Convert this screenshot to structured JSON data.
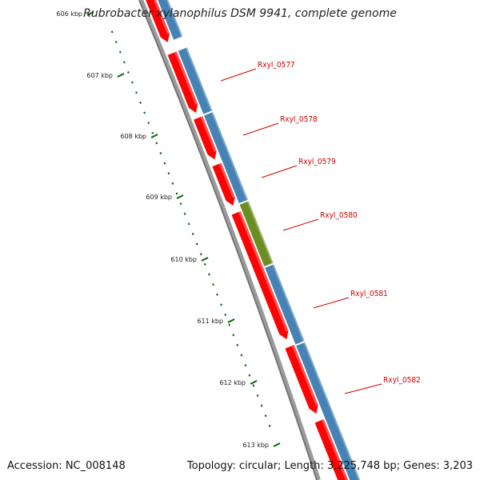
{
  "title": "Rubrobacter xylanophilus DSM 9941, complete genome",
  "accession": "Accession: NC_008148",
  "summary": "Topology: circular; Length: 3,225,748 bp; Genes: 3,203",
  "colors": {
    "cds": "#ff0000",
    "gene": "#4682b4",
    "highlight": "#6b8e23",
    "backbone": "#808080",
    "ticks": "#006400",
    "label": "#cc0000"
  },
  "ticks": [
    {
      "label": "606 kbp",
      "kbp": 606
    },
    {
      "label": "607 kbp",
      "kbp": 607
    },
    {
      "label": "608 kbp",
      "kbp": 608
    },
    {
      "label": "609 kbp",
      "kbp": 609
    },
    {
      "label": "610 kbp",
      "kbp": 610
    },
    {
      "label": "611 kbp",
      "kbp": 611
    },
    {
      "label": "612 kbp",
      "kbp": 612
    },
    {
      "label": "613 kbp",
      "kbp": 613
    }
  ],
  "genes": [
    {
      "label": "Rxyl_0577"
    },
    {
      "label": "Rxyl_0578"
    },
    {
      "label": "Rxyl_0579"
    },
    {
      "label": "Rxyl_0580",
      "highlight": true
    },
    {
      "label": "Rxyl_0581"
    },
    {
      "label": "Rxyl_0582"
    }
  ]
}
